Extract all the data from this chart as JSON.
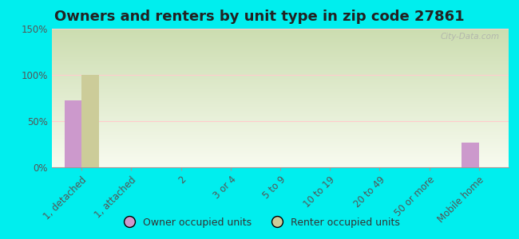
{
  "title": "Owners and renters by unit type in zip code 27861",
  "categories": [
    "1, detached",
    "1, attached",
    "2",
    "3 or 4",
    "5 to 9",
    "10 to 19",
    "20 to 49",
    "50 or more",
    "Mobile home"
  ],
  "owner_values": [
    72,
    0,
    0,
    0,
    0,
    0,
    0,
    0,
    27
  ],
  "renter_values": [
    100,
    0,
    0,
    0,
    0,
    0,
    0,
    0,
    0
  ],
  "owner_color": "#cc99cc",
  "renter_color": "#cccc99",
  "background_color": "#00eeee",
  "ylim": [
    0,
    150
  ],
  "yticks": [
    0,
    50,
    100,
    150
  ],
  "ytick_labels": [
    "0%",
    "50%",
    "100%",
    "150%"
  ],
  "bar_width": 0.35,
  "legend_labels": [
    "Owner occupied units",
    "Renter occupied units"
  ],
  "watermark": "City-Data.com",
  "title_fontsize": 13,
  "tick_fontsize": 8.5
}
